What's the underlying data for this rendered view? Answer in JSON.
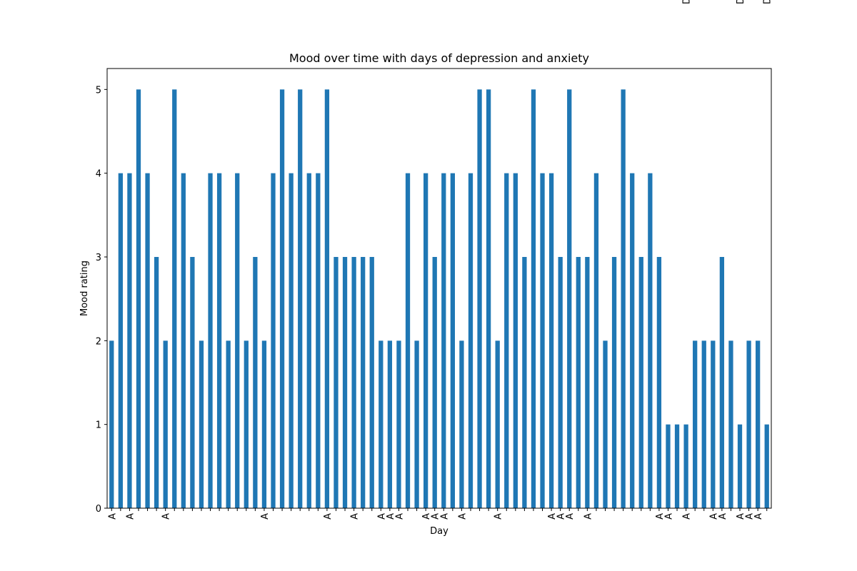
{
  "chart_data": {
    "type": "bar",
    "title": "Mood over time with days of depression and anxiety",
    "xlabel": "Day",
    "ylabel": "Mood rating",
    "categories": [
      "A",
      null,
      "A",
      null,
      null,
      null,
      "A",
      null,
      null,
      null,
      null,
      null,
      null,
      null,
      null,
      null,
      null,
      "A",
      null,
      null,
      null,
      null,
      null,
      null,
      "A",
      null,
      null,
      "A",
      null,
      null,
      "A",
      "A",
      "A",
      null,
      null,
      "A",
      "A",
      "A",
      null,
      "A",
      null,
      null,
      null,
      "A",
      null,
      null,
      null,
      null,
      null,
      "A",
      "A",
      "A",
      null,
      "A",
      null,
      null,
      null,
      null,
      null,
      null,
      null,
      "A",
      "A",
      null,
      "A",
      null,
      null,
      "A",
      "A",
      null,
      "A",
      "A",
      "A",
      null
    ],
    "top_categories": [
      null,
      null,
      null,
      null,
      null,
      null,
      null,
      null,
      null,
      null,
      null,
      null,
      null,
      null,
      null,
      null,
      null,
      null,
      null,
      null,
      null,
      null,
      null,
      null,
      null,
      null,
      null,
      null,
      null,
      null,
      null,
      null,
      null,
      null,
      null,
      null,
      null,
      null,
      null,
      null,
      null,
      null,
      null,
      null,
      null,
      null,
      null,
      null,
      null,
      null,
      null,
      null,
      null,
      null,
      null,
      null,
      null,
      null,
      null,
      null,
      null,
      null,
      null,
      null,
      "D",
      null,
      null,
      null,
      null,
      null,
      "D",
      null,
      null,
      "D"
    ],
    "values": [
      2,
      4,
      4,
      5,
      4,
      3,
      2,
      5,
      4,
      3,
      2,
      4,
      4,
      2,
      4,
      2,
      3,
      2,
      4,
      5,
      4,
      5,
      4,
      4,
      5,
      3,
      3,
      3,
      3,
      3,
      2,
      2,
      2,
      4,
      2,
      4,
      3,
      4,
      4,
      2,
      4,
      5,
      5,
      2,
      4,
      4,
      3,
      5,
      4,
      4,
      3,
      5,
      3,
      3,
      4,
      2,
      3,
      5,
      4,
      3,
      4,
      3,
      1,
      1,
      1,
      2,
      2,
      2,
      3,
      2,
      1,
      2,
      2,
      1
    ],
    "color": "#1f77b4",
    "ylim": [
      0,
      5.25
    ],
    "yticks": [
      0,
      1,
      2,
      3,
      4,
      5
    ]
  }
}
